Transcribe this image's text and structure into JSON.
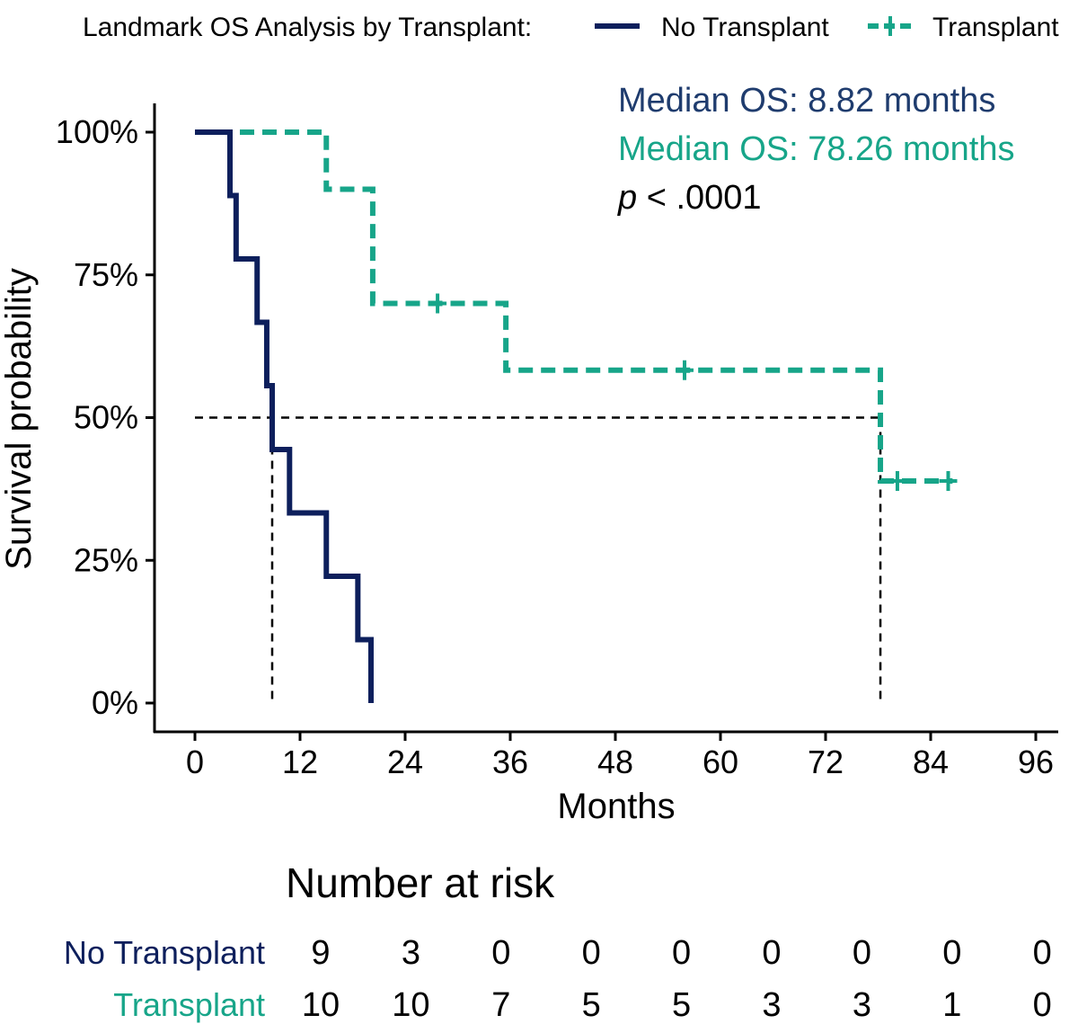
{
  "chart_data": {
    "type": "line",
    "subtype": "kaplan-meier",
    "legend": {
      "title": "Landmark OS Analysis by Transplant:",
      "position": "top"
    },
    "xlabel": "Months",
    "ylabel": "Survival probability",
    "xlim": [
      0,
      96
    ],
    "ylim": [
      0,
      1
    ],
    "xticks": [
      0,
      12,
      24,
      36,
      48,
      60,
      72,
      84,
      96
    ],
    "yticks": [
      {
        "value": 0,
        "label": "0%"
      },
      {
        "value": 0.25,
        "label": "25%"
      },
      {
        "value": 0.5,
        "label": "50%"
      },
      {
        "value": 0.75,
        "label": "75%"
      },
      {
        "value": 1,
        "label": "100%"
      }
    ],
    "series": [
      {
        "name": "No Transplant",
        "color": "#0d1f5c",
        "dash": "solid",
        "steps": [
          [
            0,
            1.0
          ],
          [
            4,
            0.889
          ],
          [
            4.7,
            0.778
          ],
          [
            7.1,
            0.667
          ],
          [
            8.2,
            0.556
          ],
          [
            8.82,
            0.444
          ],
          [
            10.8,
            0.333
          ],
          [
            15,
            0.222
          ],
          [
            18.6,
            0.111
          ],
          [
            20.1,
            0.0
          ]
        ],
        "end": 20.1,
        "censored": [],
        "median_text": "Median OS: 8.82 months"
      },
      {
        "name": "Transplant",
        "color": "#17a589",
        "dash": "dashed",
        "steps": [
          [
            0,
            1.0
          ],
          [
            15,
            0.9
          ],
          [
            20.3,
            0.7
          ],
          [
            35.5,
            0.583
          ],
          [
            78.26,
            0.389
          ]
        ],
        "end": 86.5,
        "censored": [
          [
            27.7,
            0.7
          ],
          [
            55.9,
            0.583
          ],
          [
            80.2,
            0.389
          ],
          [
            86.0,
            0.389
          ]
        ],
        "median_text": "Median OS: 78.26 months"
      }
    ],
    "median_reference": {
      "y": 0.5,
      "x_values": [
        8.82,
        78.26
      ]
    },
    "pvalue": {
      "label": "p",
      "text": " < .0001"
    },
    "risk_table": {
      "title": "Number at risk",
      "rows": [
        {
          "name": "No Transplant",
          "color": "#0d1f5c",
          "values": [
            "9",
            "3",
            "0",
            "0",
            "0",
            "0",
            "0",
            "0",
            "0"
          ]
        },
        {
          "name": "Transplant",
          "color": "#17a589",
          "values": [
            "10",
            "10",
            "7",
            "5",
            "5",
            "3",
            "3",
            "1",
            "0"
          ]
        }
      ]
    }
  }
}
